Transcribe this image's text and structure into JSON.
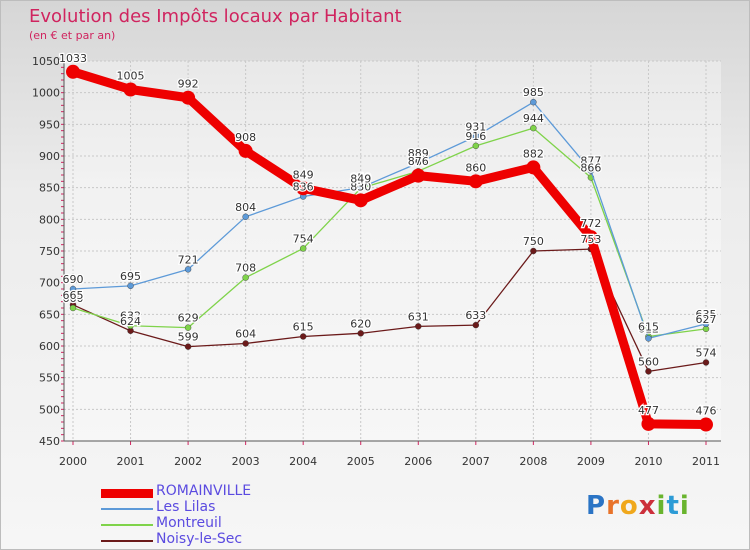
{
  "title": "Evolution des Impôts locaux par Habitant",
  "subtitle": "(en € et par an)",
  "brand": "Proxiti",
  "chart_data": {
    "type": "line",
    "title": "Evolution des Impôts locaux par Habitant",
    "subtitle": "(en € et par an)",
    "xlabel": "",
    "ylabel": "",
    "x": [
      "2000",
      "2001",
      "2002",
      "2003",
      "2004",
      "2005",
      "2006",
      "2007",
      "2008",
      "2009",
      "2010",
      "2011"
    ],
    "ylim": [
      450,
      1050
    ],
    "yticks": [
      450,
      500,
      550,
      600,
      650,
      700,
      750,
      800,
      850,
      900,
      950,
      1000,
      1050
    ],
    "grid": true,
    "legend_position": "bottom-left",
    "series": [
      {
        "name": "ROMAINVILLE",
        "color": "#ee0000",
        "values": [
          1033,
          1005,
          992,
          908,
          849,
          830,
          869,
          860,
          882,
          772,
          477,
          476
        ]
      },
      {
        "name": "Les Lilas",
        "color": "#5d9ad8",
        "values": [
          690,
          695,
          721,
          804,
          836,
          850,
          889,
          931,
          985,
          877,
          612,
          635
        ]
      },
      {
        "name": "Montreuil",
        "color": "#7fd34a",
        "values": [
          660,
          632,
          629,
          708,
          754,
          849,
          876,
          916,
          944,
          866,
          615,
          627
        ]
      },
      {
        "name": "Noisy-le-Sec",
        "color": "#6b1a1a",
        "values": [
          665,
          624,
          599,
          604,
          615,
          620,
          631,
          633,
          750,
          753,
          560,
          574
        ]
      }
    ]
  }
}
